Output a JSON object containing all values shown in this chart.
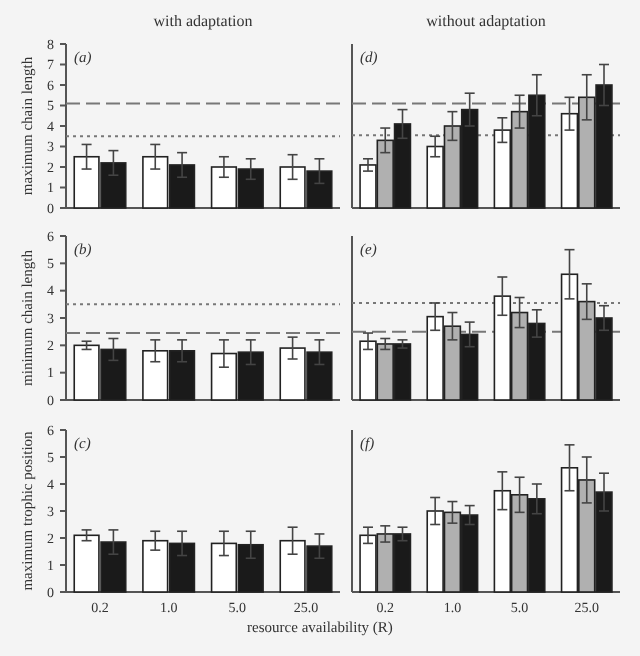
{
  "chart_data": [
    {
      "type": "bar",
      "title": "with adaptation",
      "ylabel": "maximum chain length",
      "annotations": [
        "(a)"
      ],
      "categories": [
        "0.2",
        "1.0",
        "5.0",
        "25.0"
      ],
      "ylim": [
        0,
        8
      ],
      "yticks": [
        0,
        1,
        2,
        3,
        4,
        5,
        6,
        7,
        8
      ],
      "tick_labels": "y",
      "grid": false,
      "series": [
        {
          "color": "#ffffff",
          "values": [
            2.5,
            2.5,
            2.0,
            2.0
          ],
          "errors": [
            0.6,
            0.6,
            0.5,
            0.6
          ]
        },
        {
          "color": "#1a1a1a",
          "values": [
            2.2,
            2.1,
            1.9,
            1.8
          ],
          "errors": [
            0.6,
            0.6,
            0.5,
            0.6
          ]
        }
      ],
      "ref_lines": [
        {
          "axis": "y",
          "value": 5.1,
          "color": "#777777",
          "line_style": "dashed"
        },
        {
          "axis": "y",
          "value": 3.5,
          "color": "#777777",
          "line_style": "dotted"
        }
      ]
    },
    {
      "type": "bar",
      "title": "without adaptation",
      "annotations": [
        "(d)"
      ],
      "categories": [
        "0.2",
        "1.0",
        "5.0",
        "25.0"
      ],
      "ylim": [
        0,
        8
      ],
      "tick_labels": false,
      "grid": false,
      "series": [
        {
          "color": "#ffffff",
          "values": [
            2.1,
            3.0,
            3.8,
            4.6
          ],
          "errors": [
            0.3,
            0.5,
            0.6,
            0.8
          ]
        },
        {
          "color": "#b0b0b0",
          "values": [
            3.3,
            4.0,
            4.7,
            5.4
          ],
          "errors": [
            0.6,
            0.7,
            0.8,
            1.1
          ]
        },
        {
          "color": "#1a1a1a",
          "values": [
            4.1,
            4.8,
            5.5,
            6.0
          ],
          "errors": [
            0.7,
            0.8,
            1.0,
            1.0
          ]
        }
      ],
      "ref_lines": [
        {
          "axis": "y",
          "value": 5.1,
          "color": "#777777",
          "line_style": "dashed"
        },
        {
          "axis": "y",
          "value": 3.55,
          "color": "#777777",
          "line_style": "dotted"
        }
      ]
    },
    {
      "type": "bar",
      "ylabel": "minimum chain length",
      "annotations": [
        "(b)"
      ],
      "categories": [
        "0.2",
        "1.0",
        "5.0",
        "25.0"
      ],
      "ylim": [
        0,
        6
      ],
      "yticks": [
        0,
        1,
        2,
        3,
        4,
        5,
        6
      ],
      "tick_labels": "y",
      "grid": false,
      "series": [
        {
          "color": "#ffffff",
          "values": [
            2.0,
            1.8,
            1.7,
            1.9
          ],
          "errors": [
            0.15,
            0.4,
            0.5,
            0.4
          ]
        },
        {
          "color": "#1a1a1a",
          "values": [
            1.85,
            1.8,
            1.75,
            1.75
          ],
          "errors": [
            0.4,
            0.4,
            0.45,
            0.45
          ]
        }
      ],
      "ref_lines": [
        {
          "axis": "y",
          "value": 3.5,
          "color": "#777777",
          "line_style": "dotted"
        },
        {
          "axis": "y",
          "value": 2.45,
          "color": "#777777",
          "line_style": "dashed"
        }
      ]
    },
    {
      "type": "bar",
      "annotations": [
        "(e)"
      ],
      "categories": [
        "0.2",
        "1.0",
        "5.0",
        "25.0"
      ],
      "ylim": [
        0,
        6
      ],
      "tick_labels": false,
      "grid": false,
      "series": [
        {
          "color": "#ffffff",
          "values": [
            2.15,
            3.05,
            3.8,
            4.6
          ],
          "errors": [
            0.3,
            0.5,
            0.7,
            0.9
          ]
        },
        {
          "color": "#b0b0b0",
          "values": [
            2.05,
            2.7,
            3.2,
            3.6
          ],
          "errors": [
            0.2,
            0.5,
            0.55,
            0.65
          ]
        },
        {
          "color": "#1a1a1a",
          "values": [
            2.05,
            2.4,
            2.8,
            3.0
          ],
          "errors": [
            0.15,
            0.45,
            0.5,
            0.45
          ]
        }
      ],
      "ref_lines": [
        {
          "axis": "y",
          "value": 3.55,
          "color": "#777777",
          "line_style": "dotted"
        },
        {
          "axis": "y",
          "value": 2.5,
          "color": "#777777",
          "line_style": "dashed"
        }
      ]
    },
    {
      "type": "bar",
      "ylabel": "maximum trophic position",
      "xlabel": "resource availability (R)",
      "annotations": [
        "(c)"
      ],
      "categories": [
        "0.2",
        "1.0",
        "5.0",
        "25.0"
      ],
      "ylim": [
        0,
        6
      ],
      "yticks": [
        0,
        1,
        2,
        3,
        4,
        5,
        6
      ],
      "grid": false,
      "series": [
        {
          "color": "#ffffff",
          "values": [
            2.1,
            1.9,
            1.8,
            1.9
          ],
          "errors": [
            0.2,
            0.35,
            0.45,
            0.5
          ]
        },
        {
          "color": "#1a1a1a",
          "values": [
            1.85,
            1.8,
            1.75,
            1.7
          ],
          "errors": [
            0.45,
            0.45,
            0.5,
            0.45
          ]
        }
      ]
    },
    {
      "type": "bar",
      "annotations": [
        "(f)"
      ],
      "categories": [
        "0.2",
        "1.0",
        "5.0",
        "25.0"
      ],
      "ylim": [
        0,
        6
      ],
      "tick_labels": "x",
      "grid": false,
      "series": [
        {
          "color": "#ffffff",
          "values": [
            2.1,
            3.0,
            3.75,
            4.6
          ],
          "errors": [
            0.3,
            0.5,
            0.7,
            0.85
          ]
        },
        {
          "color": "#b0b0b0",
          "values": [
            2.15,
            2.95,
            3.6,
            4.15
          ],
          "errors": [
            0.3,
            0.4,
            0.65,
            0.85
          ]
        },
        {
          "color": "#1a1a1a",
          "values": [
            2.15,
            2.85,
            3.45,
            3.7
          ],
          "errors": [
            0.25,
            0.35,
            0.55,
            0.7
          ]
        }
      ]
    }
  ]
}
